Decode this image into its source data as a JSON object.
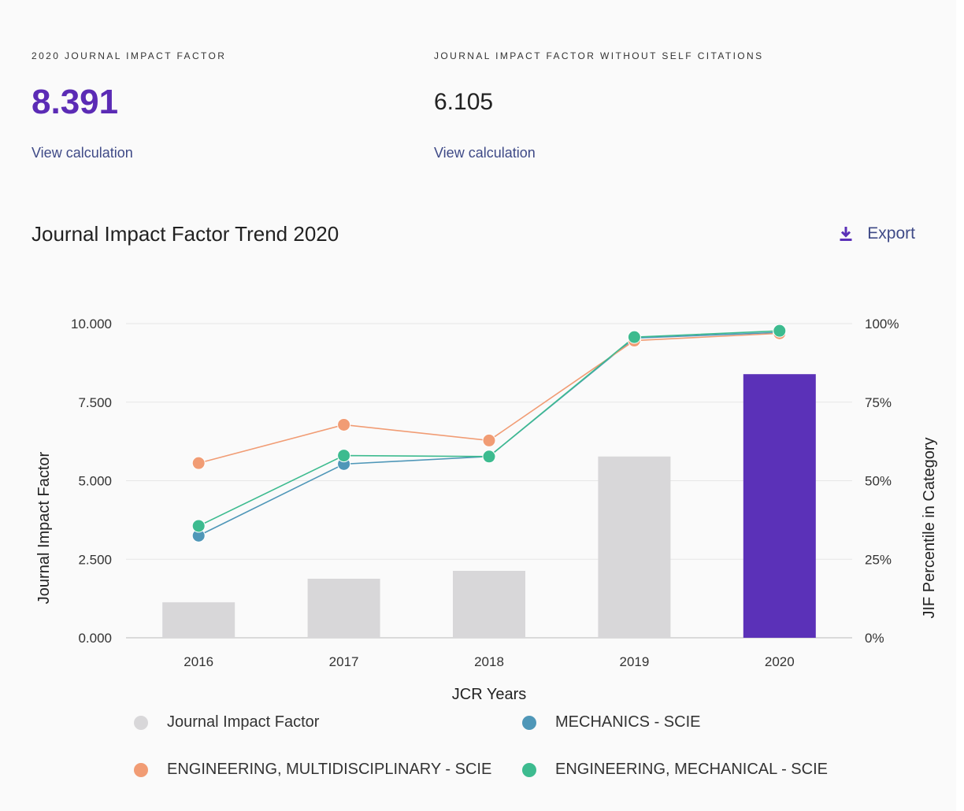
{
  "metrics": {
    "jif": {
      "label": "2020 JOURNAL IMPACT FACTOR",
      "value": "8.391",
      "link": "View calculation"
    },
    "jif_no_self": {
      "label": "JOURNAL IMPACT FACTOR WITHOUT SELF CITATIONS",
      "value": "6.105",
      "link": "View calculation"
    }
  },
  "chart_header": {
    "title": "Journal Impact Factor Trend 2020",
    "export_label": "Export",
    "export_icon": "download-icon"
  },
  "chart_data": {
    "type": "bar",
    "title": "Journal Impact Factor Trend 2020",
    "categories": [
      "2016",
      "2017",
      "2018",
      "2019",
      "2020"
    ],
    "xlabel": "JCR Years",
    "ylabel": "Journal Impact Factor",
    "y2label": "JIF Percentile in Category",
    "ylim": [
      0,
      10
    ],
    "y2lim": [
      0,
      100
    ],
    "yticks": [
      "0.000",
      "2.500",
      "5.000",
      "7.500",
      "10.000"
    ],
    "y2ticks": [
      "0%",
      "25%",
      "50%",
      "75%",
      "100%"
    ],
    "grid": true,
    "legend_position": "bottom",
    "bars": {
      "name": "Journal Impact Factor",
      "values": [
        1.13,
        1.88,
        2.13,
        5.77,
        8.391
      ],
      "colors": [
        "#d8d7d9",
        "#d8d7d9",
        "#d8d7d9",
        "#d8d7d9",
        "#5b31b8"
      ]
    },
    "series": [
      {
        "name": "MECHANICS - SCIE",
        "axis": "right",
        "values": [
          32.5,
          55.3,
          57.7,
          95.4,
          97.2
        ],
        "color": "#4f97b8"
      },
      {
        "name": "ENGINEERING, MULTIDISCIPLINARY - SCIE",
        "axis": "right",
        "values": [
          55.6,
          67.8,
          62.8,
          94.6,
          96.9
        ],
        "color": "#f19c74"
      },
      {
        "name": "ENGINEERING, MECHANICAL - SCIE",
        "axis": "right",
        "values": [
          35.6,
          58.0,
          57.7,
          95.7,
          97.7
        ],
        "color": "#3dbb8f"
      }
    ],
    "legend": [
      {
        "label": "Journal Impact Factor",
        "color": "#d8d7d9"
      },
      {
        "label": "MECHANICS - SCIE",
        "color": "#4f97b8"
      },
      {
        "label": "ENGINEERING, MULTIDISCIPLINARY - SCIE",
        "color": "#f19c74"
      },
      {
        "label": "ENGINEERING, MECHANICAL - SCIE",
        "color": "#3dbb8f"
      }
    ]
  }
}
